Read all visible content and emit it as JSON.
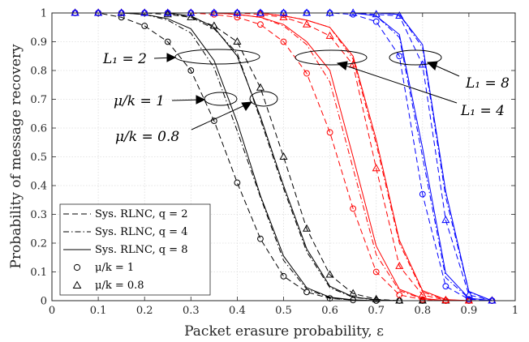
{
  "chart_data": {
    "type": "line",
    "xlabel": "Packet erasure probability, ε",
    "ylabel": "Probability of message recovery",
    "xlim": [
      0,
      1
    ],
    "ylim": [
      0,
      1
    ],
    "xticks": [
      "0",
      "0.1",
      "0.2",
      "0.3",
      "0.4",
      "0.5",
      "0.6",
      "0.7",
      "0.8",
      "0.9",
      "1"
    ],
    "yticks": [
      "0",
      "0.1",
      "0.2",
      "0.3",
      "0.4",
      "0.5",
      "0.6",
      "0.7",
      "0.8",
      "0.9",
      "1"
    ],
    "grid": true,
    "legend_position": "bottom-left",
    "legend": [
      {
        "label": "Sys. RLNC, q = 2",
        "line": "dashed"
      },
      {
        "label": "Sys. RLNC, q = 4",
        "line": "dashdot"
      },
      {
        "label": "Sys. RLNC, q = 8",
        "line": "solid"
      },
      {
        "label": "μ/k = 1",
        "marker": "circle"
      },
      {
        "label": "μ/k = 0.8",
        "marker": "triangle"
      }
    ],
    "annotations": [
      {
        "text": "L₁ = 2"
      },
      {
        "text": "L₁ = 4"
      },
      {
        "text": "L₁ = 8"
      },
      {
        "text": "μ/k = 1"
      },
      {
        "text": "μ/k = 0.8"
      }
    ],
    "x": [
      0.05,
      0.1,
      0.15,
      0.2,
      0.25,
      0.3,
      0.35,
      0.4,
      0.45,
      0.5,
      0.55,
      0.6,
      0.65,
      0.7,
      0.75,
      0.8,
      0.85,
      0.9,
      0.95
    ],
    "series": [
      {
        "color": "#000000",
        "line": "dashed",
        "marker": "circle",
        "values": [
          1,
          1,
          0.985,
          0.955,
          0.9,
          0.8,
          0.625,
          0.41,
          0.215,
          0.085,
          0.03,
          0.008,
          0.002,
          0,
          0,
          0,
          0,
          0,
          0
        ]
      },
      {
        "color": "#000000",
        "line": "dashdot",
        "marker": "circle",
        "values": [
          1,
          1,
          1,
          0.995,
          0.975,
          0.93,
          0.81,
          0.59,
          0.36,
          0.14,
          0.04,
          0.01,
          0.002,
          0,
          0,
          0,
          0,
          0,
          0
        ]
      },
      {
        "color": "#000000",
        "line": "solid",
        "marker": "circle",
        "values": [
          1,
          1,
          1,
          0.995,
          0.98,
          0.945,
          0.835,
          0.62,
          0.365,
          0.155,
          0.045,
          0.012,
          0.003,
          0,
          0,
          0,
          0,
          0,
          0
        ]
      },
      {
        "color": "#000000",
        "line": "dashed",
        "marker": "triangle",
        "values": [
          1,
          1,
          1,
          1,
          0.995,
          0.985,
          0.955,
          0.9,
          0.74,
          0.5,
          0.25,
          0.09,
          0.025,
          0.005,
          0,
          0,
          0,
          0,
          0
        ]
      },
      {
        "color": "#000000",
        "line": "dashdot",
        "marker": "triangle",
        "values": [
          1,
          1,
          1,
          1,
          1,
          0.985,
          0.945,
          0.86,
          0.63,
          0.39,
          0.17,
          0.045,
          0.012,
          0.002,
          0,
          0,
          0,
          0,
          0
        ]
      },
      {
        "color": "#000000",
        "line": "solid",
        "marker": "triangle",
        "values": [
          1,
          1,
          1,
          1,
          1,
          0.99,
          0.95,
          0.85,
          0.64,
          0.4,
          0.18,
          0.05,
          0.013,
          0.003,
          0,
          0,
          0,
          0,
          0
        ]
      },
      {
        "color": "#ff0000",
        "line": "dashed",
        "marker": "circle",
        "values": [
          1,
          1,
          1,
          1,
          1,
          1,
          0.995,
          0.985,
          0.96,
          0.9,
          0.79,
          0.585,
          0.32,
          0.1,
          0.02,
          0.004,
          0,
          0,
          0
        ]
      },
      {
        "color": "#ff0000",
        "line": "dashdot",
        "marker": "circle",
        "values": [
          1,
          1,
          1,
          1,
          1,
          1,
          1,
          0.995,
          0.985,
          0.955,
          0.89,
          0.76,
          0.46,
          0.16,
          0.035,
          0.006,
          0,
          0,
          0
        ]
      },
      {
        "color": "#ff0000",
        "line": "solid",
        "marker": "circle",
        "values": [
          1,
          1,
          1,
          1,
          1,
          1,
          1,
          0.995,
          0.985,
          0.96,
          0.9,
          0.8,
          0.5,
          0.19,
          0.04,
          0.008,
          0,
          0,
          0
        ]
      },
      {
        "color": "#ff0000",
        "line": "dashed",
        "marker": "triangle",
        "values": [
          1,
          1,
          1,
          1,
          1,
          1,
          1,
          1,
          0.995,
          0.985,
          0.96,
          0.92,
          0.82,
          0.46,
          0.12,
          0.02,
          0.002,
          0,
          0
        ]
      },
      {
        "color": "#ff0000",
        "line": "dashdot",
        "marker": "triangle",
        "values": [
          1,
          1,
          1,
          1,
          1,
          1,
          1,
          1,
          1,
          0.99,
          0.975,
          0.95,
          0.84,
          0.545,
          0.2,
          0.03,
          0.003,
          0,
          0
        ]
      },
      {
        "color": "#ff0000",
        "line": "solid",
        "marker": "triangle",
        "values": [
          1,
          1,
          1,
          1,
          1,
          1,
          1,
          1,
          1,
          0.99,
          0.975,
          0.95,
          0.85,
          0.56,
          0.21,
          0.035,
          0.004,
          0,
          0
        ]
      },
      {
        "color": "#0000ff",
        "line": "dashed",
        "marker": "circle",
        "values": [
          1,
          1,
          1,
          1,
          1,
          1,
          1,
          1,
          1,
          1,
          1,
          1,
          0.995,
          0.97,
          0.85,
          0.37,
          0.05,
          0.005,
          0
        ]
      },
      {
        "color": "#0000ff",
        "line": "dashdot",
        "marker": "circle",
        "values": [
          1,
          1,
          1,
          1,
          1,
          1,
          1,
          1,
          1,
          1,
          1,
          1,
          1,
          0.99,
          0.915,
          0.5,
          0.08,
          0.008,
          0
        ]
      },
      {
        "color": "#0000ff",
        "line": "solid",
        "marker": "circle",
        "values": [
          1,
          1,
          1,
          1,
          1,
          1,
          1,
          1,
          1,
          1,
          1,
          1,
          1,
          0.99,
          0.925,
          0.53,
          0.095,
          0.009,
          0
        ]
      },
      {
        "color": "#0000ff",
        "line": "dashed",
        "marker": "triangle",
        "values": [
          1,
          1,
          1,
          1,
          1,
          1,
          1,
          1,
          1,
          1,
          1,
          1,
          1,
          0.995,
          0.99,
          0.82,
          0.28,
          0.02,
          0
        ]
      },
      {
        "color": "#0000ff",
        "line": "dashdot",
        "marker": "triangle",
        "values": [
          1,
          1,
          1,
          1,
          1,
          1,
          1,
          1,
          1,
          1,
          1,
          1,
          1,
          1,
          0.995,
          0.88,
          0.36,
          0.03,
          0
        ]
      },
      {
        "color": "#0000ff",
        "line": "solid",
        "marker": "triangle",
        "values": [
          1,
          1,
          1,
          1,
          1,
          1,
          1,
          1,
          1,
          1,
          1,
          1,
          1,
          1,
          0.995,
          0.89,
          0.38,
          0.032,
          0
        ]
      }
    ]
  }
}
